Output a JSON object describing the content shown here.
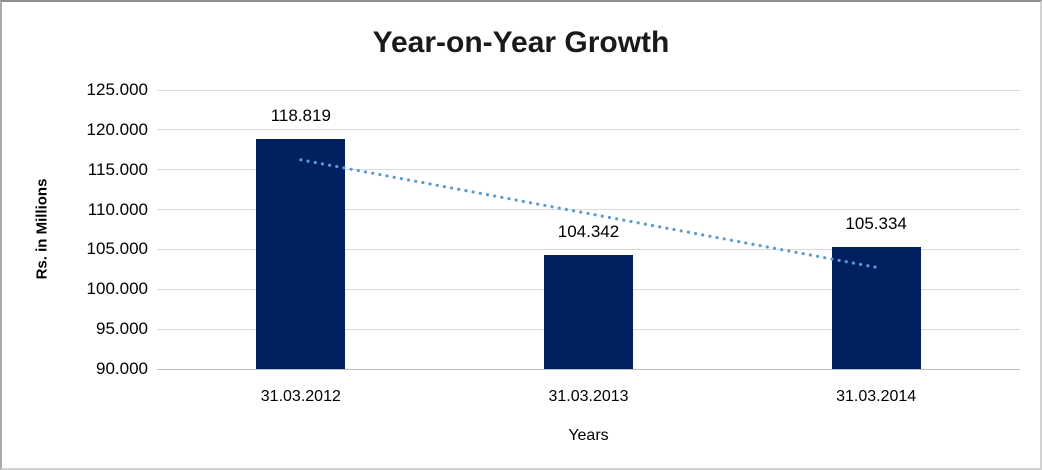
{
  "chart": {
    "title": "Year-on-Year Growth",
    "y_axis_title": "Rs. in Millions",
    "x_axis_title": "Years"
  },
  "colors": {
    "bar": "#002060",
    "trendline": "#5b9bd5",
    "gridline": "#d9d9d9",
    "axis_line": "#bfbfbf",
    "text": "#000000",
    "title_text": "#1a1a1a"
  },
  "chart_data": {
    "type": "bar",
    "title": "Year-on-Year Growth",
    "xlabel": "Years",
    "ylabel": "Rs. in Millions",
    "categories": [
      "31.03.2012",
      "31.03.2013",
      "31.03.2014"
    ],
    "values": [
      118819,
      104342,
      105334
    ],
    "value_labels": [
      "118.819",
      "104.342",
      "105.334"
    ],
    "ylim": [
      90000,
      125000
    ],
    "ytick_step": 5000,
    "ytick_labels": [
      "90.000",
      "95.000",
      "100.000",
      "105.000",
      "110.000",
      "115.000",
      "120.000",
      "125.000"
    ],
    "grid": true,
    "legend": false,
    "trendline": {
      "type": "linear",
      "style": "dotted",
      "color": "#5b9bd5",
      "start_value": 116241,
      "end_value": 102756
    }
  }
}
